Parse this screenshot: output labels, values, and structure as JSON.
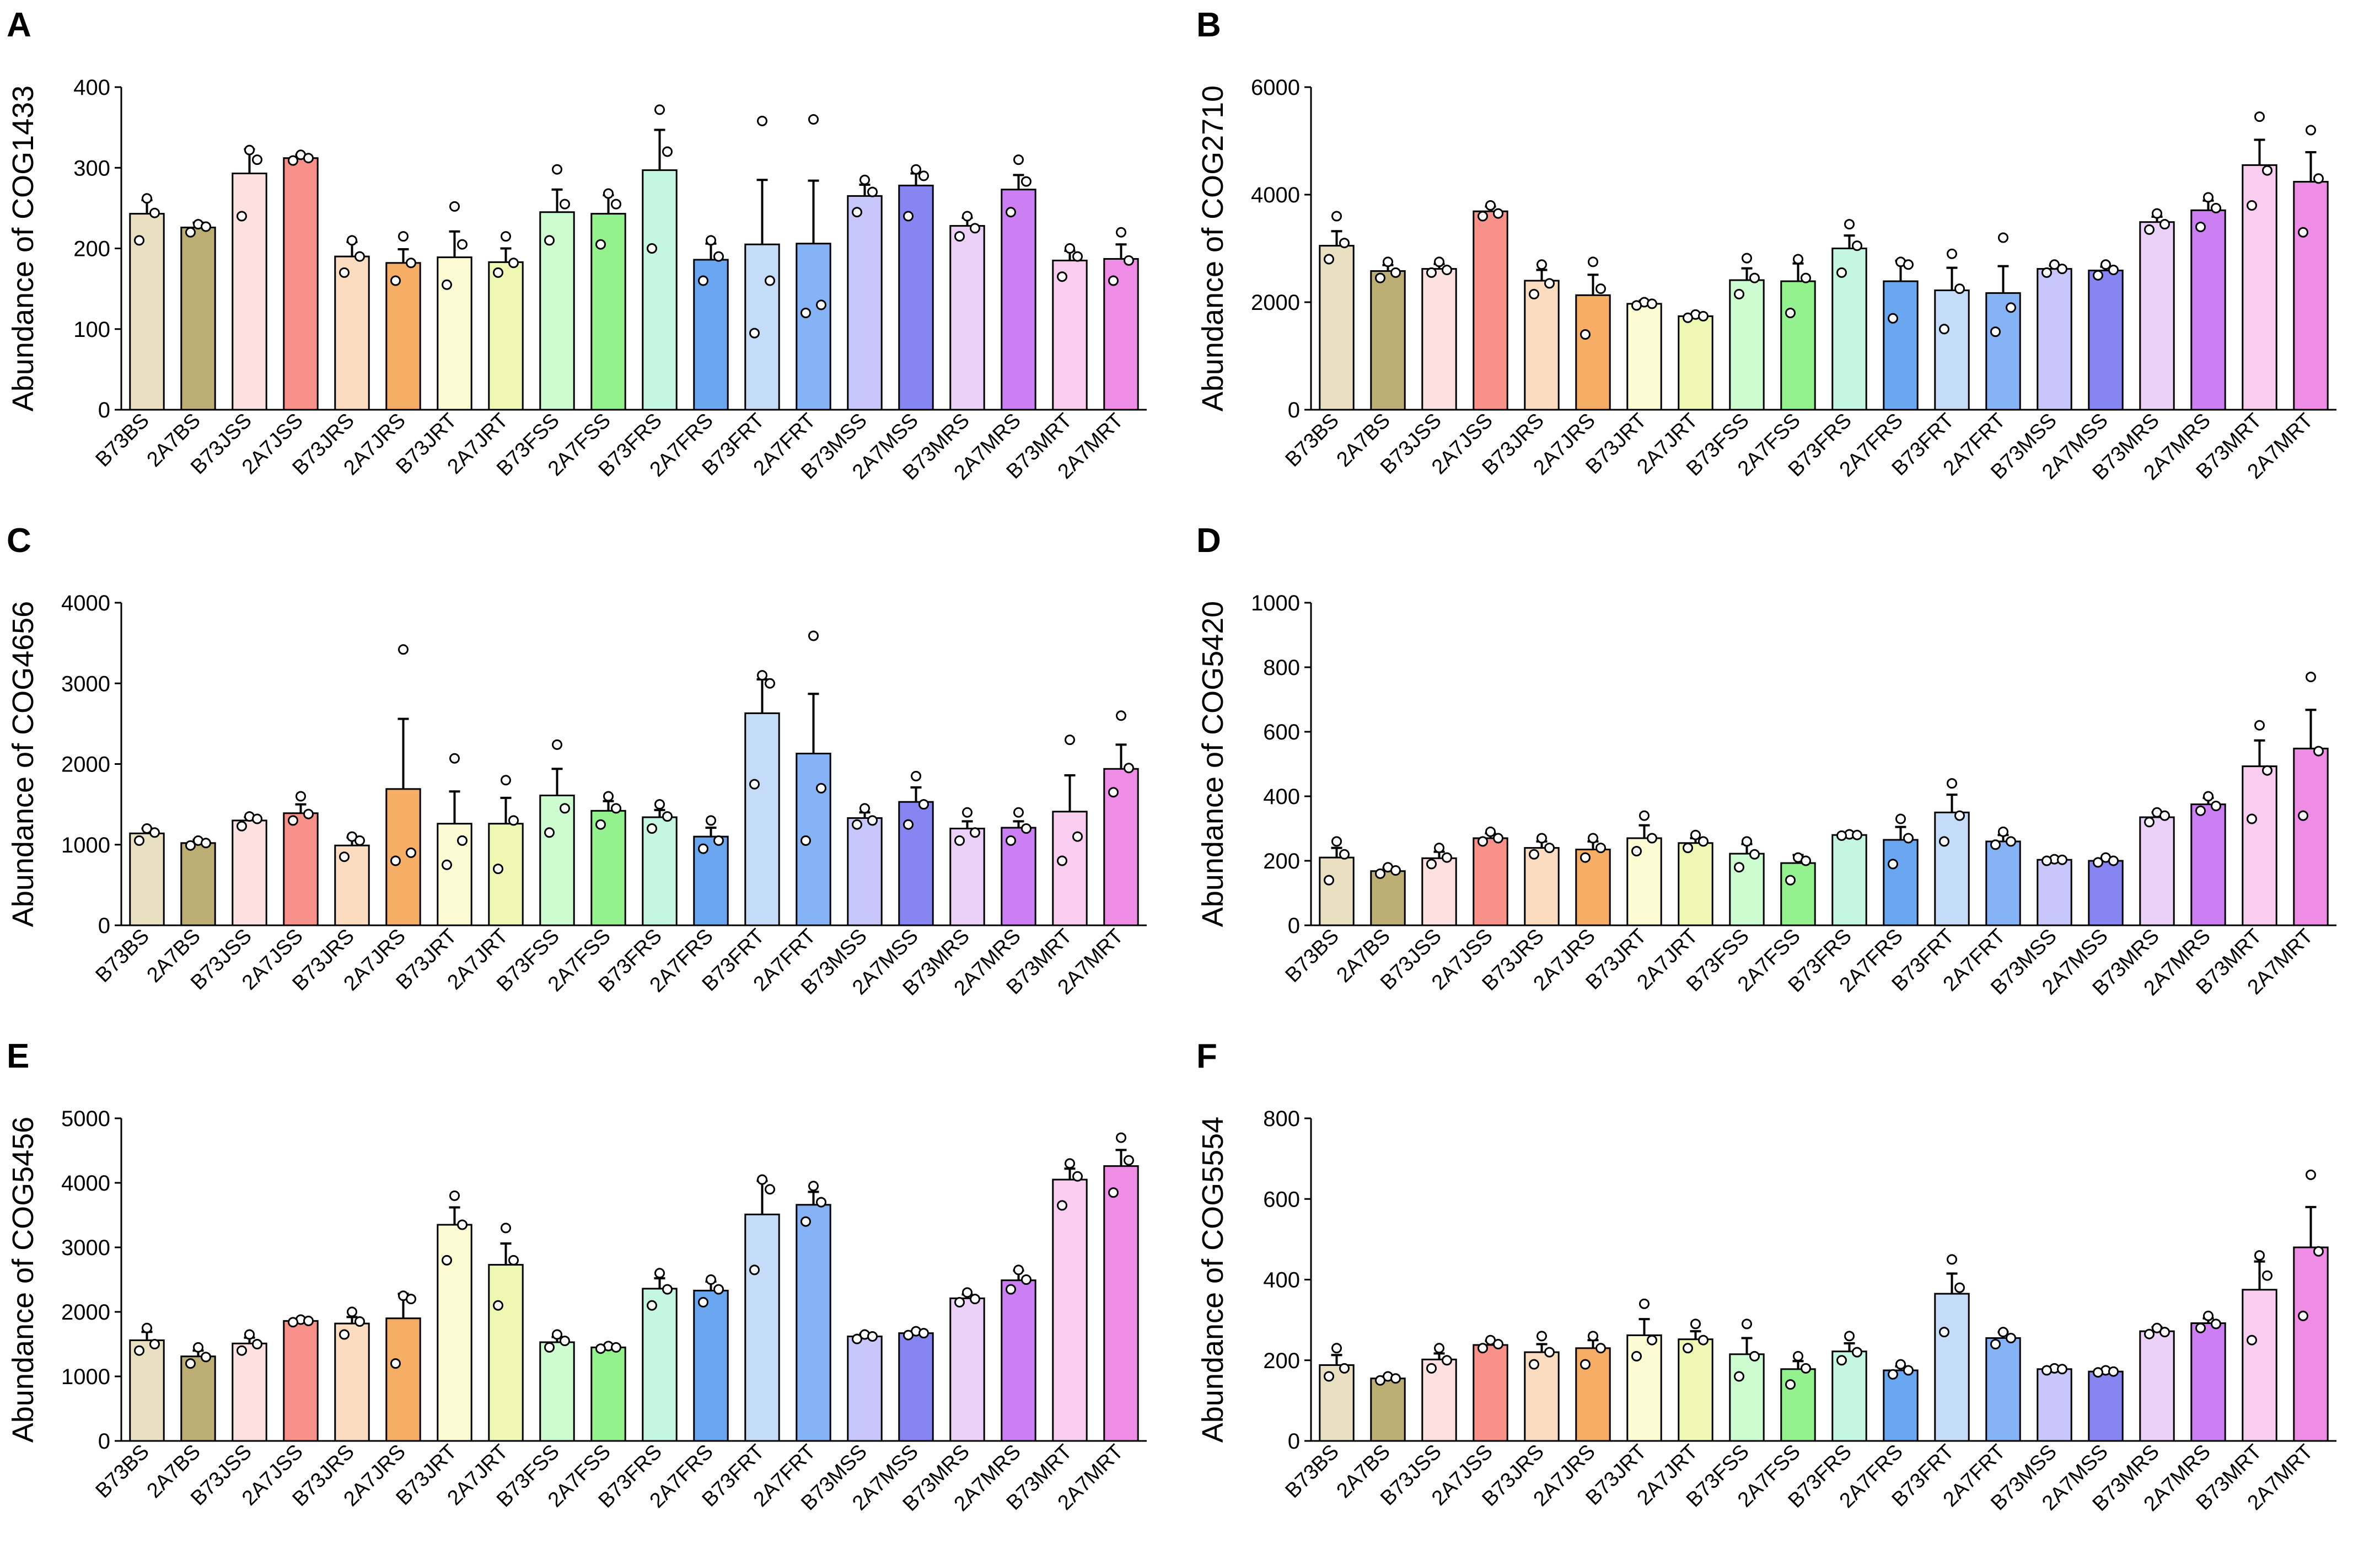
{
  "figure_title": "",
  "chart_data": [
    {
      "panel": "A",
      "type": "bar",
      "ylabel": "Abundance of COG1433",
      "xlabel": "",
      "ylim": [
        0,
        400
      ],
      "yticks": [
        0,
        100,
        200,
        300,
        400
      ],
      "categories": [
        "B73BS",
        "2A7BS",
        "B73JSS",
        "2A7JSS",
        "B73JRS",
        "2A7JRS",
        "B73JRT",
        "2A7JRT",
        "B73FSS",
        "2A7FSS",
        "B73FRS",
        "2A7FRS",
        "B73FRT",
        "2A7FRT",
        "B73MSS",
        "2A7MSS",
        "B73MRS",
        "2A7MRS",
        "B73MRT",
        "2A7MRT"
      ],
      "colors": [
        "#e9dfc1",
        "#bcae74",
        "#fde0e0",
        "#f7918a",
        "#fcdcc0",
        "#f6ae66",
        "#fdfbd4",
        "#eff8b3",
        "#cdfcd0",
        "#93f28e",
        "#c5f6e1",
        "#6aa7f0",
        "#c4dcf8",
        "#85b3f5",
        "#c8c7fb",
        "#8685f1",
        "#ebd1f7",
        "#cc7ef3",
        "#f8cdef",
        "#ee8ce6"
      ],
      "values": [
        243,
        226,
        293,
        312,
        190,
        182,
        189,
        183,
        245,
        243,
        297,
        186,
        205,
        206,
        265,
        278,
        228,
        273,
        185,
        187
      ],
      "errors": [
        17,
        6,
        30,
        4,
        18,
        17,
        32,
        17,
        28,
        23,
        50,
        20,
        80,
        78,
        14,
        15,
        10,
        18,
        12,
        18
      ],
      "points": [
        [
          262,
          244,
          210
        ],
        [
          230,
          227,
          220
        ],
        [
          322,
          310,
          240
        ],
        [
          316,
          312,
          309
        ],
        [
          210,
          190,
          170
        ],
        [
          215,
          182,
          160
        ],
        [
          252,
          205,
          155
        ],
        [
          215,
          182,
          170
        ],
        [
          298,
          255,
          210
        ],
        [
          268,
          255,
          205
        ],
        [
          372,
          320,
          200
        ],
        [
          210,
          190,
          160
        ],
        [
          358,
          160,
          95
        ],
        [
          360,
          130,
          120
        ],
        [
          285,
          270,
          245
        ],
        [
          298,
          290,
          240
        ],
        [
          240,
          225,
          215
        ],
        [
          310,
          283,
          245
        ],
        [
          200,
          190,
          165
        ],
        [
          220,
          185,
          160
        ]
      ]
    },
    {
      "panel": "B",
      "type": "bar",
      "ylabel": "Abundance of COG2710",
      "xlabel": "",
      "ylim": [
        0,
        6000
      ],
      "yticks": [
        0,
        2000,
        4000,
        6000
      ],
      "categories": [
        "B73BS",
        "2A7BS",
        "B73JSS",
        "2A7JSS",
        "B73JRS",
        "2A7JRS",
        "B73JRT",
        "2A7JRT",
        "B73FSS",
        "2A7FSS",
        "B73FRS",
        "2A7FRS",
        "B73FRT",
        "2A7FRT",
        "B73MSS",
        "2A7MSS",
        "B73MRS",
        "2A7MRS",
        "B73MRT",
        "2A7MRT"
      ],
      "colors": [
        "#e9dfc1",
        "#bcae74",
        "#fde0e0",
        "#f7918a",
        "#fcdcc0",
        "#f6ae66",
        "#fdfbd4",
        "#eff8b3",
        "#cdfcd0",
        "#93f28e",
        "#c5f6e1",
        "#6aa7f0",
        "#c4dcf8",
        "#85b3f5",
        "#c8c7fb",
        "#8685f1",
        "#ebd1f7",
        "#cc7ef3",
        "#f8cdef",
        "#ee8ce6"
      ],
      "values": [
        3050,
        2580,
        2620,
        3690,
        2400,
        2130,
        1970,
        1740,
        2410,
        2390,
        3000,
        2390,
        2220,
        2170,
        2620,
        2590,
        3490,
        3710,
        4550,
        4240
      ],
      "errors": [
        270,
        110,
        90,
        90,
        200,
        380,
        60,
        30,
        220,
        330,
        240,
        380,
        420,
        500,
        60,
        70,
        100,
        180,
        470,
        550
      ],
      "points": [
        [
          3600,
          3100,
          2800
        ],
        [
          2750,
          2550,
          2450
        ],
        [
          2750,
          2600,
          2550
        ],
        [
          3800,
          3650,
          3600
        ],
        [
          2700,
          2350,
          2150
        ],
        [
          2750,
          2250,
          1400
        ],
        [
          2000,
          1970,
          1940
        ],
        [
          1770,
          1740,
          1710
        ],
        [
          2820,
          2450,
          2150
        ],
        [
          2800,
          2450,
          1800
        ],
        [
          3450,
          3050,
          2550
        ],
        [
          2750,
          2700,
          1700
        ],
        [
          2900,
          2250,
          1500
        ],
        [
          3200,
          1900,
          1450
        ],
        [
          2700,
          2620,
          2550
        ],
        [
          2700,
          2600,
          2500
        ],
        [
          3650,
          3450,
          3350
        ],
        [
          3950,
          3750,
          3400
        ],
        [
          5450,
          4450,
          3800
        ],
        [
          5200,
          4300,
          3300
        ]
      ]
    },
    {
      "panel": "C",
      "type": "bar",
      "ylabel": "Abundance of COG4656",
      "xlabel": "",
      "ylim": [
        0,
        4000
      ],
      "yticks": [
        0,
        1000,
        2000,
        3000,
        4000
      ],
      "categories": [
        "B73BS",
        "2A7BS",
        "B73JSS",
        "2A7JSS",
        "B73JRS",
        "2A7JRS",
        "B73JRT",
        "2A7JRT",
        "B73FSS",
        "2A7FSS",
        "B73FRS",
        "2A7FRS",
        "B73FRT",
        "2A7FRT",
        "B73MSS",
        "2A7MSS",
        "B73MRS",
        "2A7MRS",
        "B73MRT",
        "2A7MRT"
      ],
      "colors": [
        "#e9dfc1",
        "#bcae74",
        "#fde0e0",
        "#f7918a",
        "#fcdcc0",
        "#f6ae66",
        "#fdfbd4",
        "#eff8b3",
        "#cdfcd0",
        "#93f28e",
        "#c5f6e1",
        "#6aa7f0",
        "#c4dcf8",
        "#85b3f5",
        "#c8c7fb",
        "#8685f1",
        "#ebd1f7",
        "#cc7ef3",
        "#f8cdef",
        "#ee8ce6"
      ],
      "values": [
        1140,
        1020,
        1300,
        1390,
        990,
        1690,
        1260,
        1260,
        1610,
        1420,
        1340,
        1100,
        2630,
        2130,
        1330,
        1530,
        1200,
        1210,
        1410,
        1940
      ],
      "errors": [
        60,
        40,
        40,
        110,
        100,
        870,
        400,
        320,
        330,
        120,
        90,
        110,
        420,
        740,
        70,
        180,
        90,
        80,
        450,
        300
      ],
      "points": [
        [
          1200,
          1150,
          1050
        ],
        [
          1050,
          1020,
          990
        ],
        [
          1350,
          1320,
          1230
        ],
        [
          1600,
          1380,
          1300
        ],
        [
          1100,
          1050,
          850
        ],
        [
          3420,
          900,
          800
        ],
        [
          2070,
          1050,
          750
        ],
        [
          1800,
          1300,
          700
        ],
        [
          2240,
          1450,
          1150
        ],
        [
          1600,
          1450,
          1250
        ],
        [
          1500,
          1350,
          1200
        ],
        [
          1300,
          1050,
          950
        ],
        [
          3100,
          3000,
          1750
        ],
        [
          3590,
          1700,
          1050
        ],
        [
          1450,
          1300,
          1250
        ],
        [
          1850,
          1500,
          1250
        ],
        [
          1400,
          1150,
          1050
        ],
        [
          1400,
          1200,
          1050
        ],
        [
          2300,
          1100,
          800
        ],
        [
          2600,
          1950,
          1650
        ]
      ]
    },
    {
      "panel": "D",
      "type": "bar",
      "ylabel": "Abundance of COG5420",
      "xlabel": "",
      "ylim": [
        0,
        1000
      ],
      "yticks": [
        0,
        200,
        400,
        600,
        800,
        1000
      ],
      "categories": [
        "B73BS",
        "2A7BS",
        "B73JSS",
        "2A7JSS",
        "B73JRS",
        "2A7JRS",
        "B73JRT",
        "2A7JRT",
        "B73FSS",
        "2A7FSS",
        "B73FRS",
        "2A7FRS",
        "B73FRT",
        "2A7FRT",
        "B73MSS",
        "2A7MSS",
        "B73MRS",
        "2A7MRS",
        "B73MRT",
        "2A7MRT"
      ],
      "colors": [
        "#e9dfc1",
        "#bcae74",
        "#fde0e0",
        "#f7918a",
        "#fcdcc0",
        "#f6ae66",
        "#fdfbd4",
        "#eff8b3",
        "#cdfcd0",
        "#93f28e",
        "#c5f6e1",
        "#6aa7f0",
        "#c4dcf8",
        "#85b3f5",
        "#c8c7fb",
        "#8685f1",
        "#ebd1f7",
        "#cc7ef3",
        "#f8cdef",
        "#ee8ce6"
      ],
      "values": [
        210,
        168,
        208,
        270,
        240,
        235,
        270,
        255,
        222,
        193,
        280,
        265,
        350,
        260,
        203,
        200,
        335,
        375,
        493,
        548
      ],
      "errors": [
        30,
        10,
        20,
        15,
        20,
        25,
        40,
        15,
        30,
        25,
        5,
        40,
        55,
        20,
        5,
        8,
        15,
        20,
        80,
        120
      ],
      "points": [
        [
          260,
          220,
          140
        ],
        [
          180,
          170,
          160
        ],
        [
          240,
          210,
          190
        ],
        [
          290,
          270,
          260
        ],
        [
          270,
          240,
          220
        ],
        [
          270,
          240,
          210
        ],
        [
          340,
          270,
          230
        ],
        [
          280,
          260,
          240
        ],
        [
          260,
          220,
          180
        ],
        [
          210,
          200,
          140
        ],
        [
          282,
          280,
          278
        ],
        [
          330,
          270,
          190
        ],
        [
          440,
          340,
          260
        ],
        [
          290,
          260,
          250
        ],
        [
          205,
          203,
          200
        ],
        [
          210,
          200,
          195
        ],
        [
          350,
          340,
          320
        ],
        [
          400,
          370,
          355
        ],
        [
          620,
          480,
          330
        ],
        [
          770,
          540,
          340
        ]
      ]
    },
    {
      "panel": "E",
      "type": "bar",
      "ylabel": "Abundance of COG5456",
      "xlabel": "",
      "ylim": [
        0,
        5000
      ],
      "yticks": [
        0,
        1000,
        2000,
        3000,
        4000,
        5000
      ],
      "categories": [
        "B73BS",
        "2A7BS",
        "B73JSS",
        "2A7JSS",
        "B73JRS",
        "2A7JRS",
        "B73JRT",
        "2A7JRT",
        "B73FSS",
        "2A7FSS",
        "B73FRS",
        "2A7FRS",
        "B73FRT",
        "2A7FRT",
        "B73MSS",
        "2A7MSS",
        "B73MRS",
        "2A7MRS",
        "B73MRT",
        "2A7MRT"
      ],
      "colors": [
        "#e9dfc1",
        "#bcae74",
        "#fde0e0",
        "#f7918a",
        "#fcdcc0",
        "#f6ae66",
        "#fdfbd4",
        "#eff8b3",
        "#cdfcd0",
        "#93f28e",
        "#c5f6e1",
        "#6aa7f0",
        "#c4dcf8",
        "#85b3f5",
        "#c8c7fb",
        "#8685f1",
        "#ebd1f7",
        "#cc7ef3",
        "#f8cdef",
        "#ee8ce6"
      ],
      "values": [
        1560,
        1310,
        1510,
        1860,
        1820,
        1900,
        3350,
        2730,
        1530,
        1450,
        2360,
        2330,
        3510,
        3660,
        1620,
        1670,
        2210,
        2490,
        4050,
        4260
      ],
      "errors": [
        130,
        90,
        90,
        20,
        100,
        380,
        270,
        330,
        80,
        30,
        160,
        140,
        520,
        200,
        40,
        30,
        60,
        150,
        170,
        250
      ],
      "points": [
        [
          1750,
          1500,
          1400
        ],
        [
          1450,
          1300,
          1200
        ],
        [
          1650,
          1500,
          1400
        ],
        [
          1880,
          1860,
          1840
        ],
        [
          2000,
          1850,
          1650
        ],
        [
          2250,
          2200,
          1200
        ],
        [
          3800,
          3350,
          2800
        ],
        [
          3300,
          2800,
          2100
        ],
        [
          1650,
          1550,
          1450
        ],
        [
          1470,
          1450,
          1430
        ],
        [
          2600,
          2350,
          2100
        ],
        [
          2500,
          2350,
          2150
        ],
        [
          4050,
          3900,
          2650
        ],
        [
          3950,
          3700,
          3400
        ],
        [
          1650,
          1620,
          1580
        ],
        [
          1700,
          1670,
          1640
        ],
        [
          2300,
          2200,
          2150
        ],
        [
          2650,
          2500,
          2350
        ],
        [
          4300,
          4100,
          3650
        ],
        [
          4700,
          4350,
          3850
        ]
      ]
    },
    {
      "panel": "F",
      "type": "bar",
      "ylabel": "Abundance of COG5554",
      "xlabel": "",
      "ylim": [
        0,
        800
      ],
      "yticks": [
        0,
        200,
        400,
        600,
        800
      ],
      "categories": [
        "B73BS",
        "2A7BS",
        "B73JSS",
        "2A7JSS",
        "B73JRS",
        "2A7JRS",
        "B73JRT",
        "2A7JRT",
        "B73FSS",
        "2A7FSS",
        "B73FRS",
        "2A7FRS",
        "B73FRT",
        "2A7FRT",
        "B73MSS",
        "2A7MSS",
        "B73MRS",
        "2A7MRS",
        "B73MRT",
        "2A7MRT"
      ],
      "colors": [
        "#e9dfc1",
        "#bcae74",
        "#fde0e0",
        "#f7918a",
        "#fcdcc0",
        "#f6ae66",
        "#fdfbd4",
        "#eff8b3",
        "#cdfcd0",
        "#93f28e",
        "#c5f6e1",
        "#6aa7f0",
        "#c4dcf8",
        "#85b3f5",
        "#c8c7fb",
        "#8685f1",
        "#ebd1f7",
        "#cc7ef3",
        "#f8cdef",
        "#ee8ce6"
      ],
      "values": [
        188,
        155,
        202,
        238,
        220,
        230,
        262,
        252,
        215,
        178,
        222,
        175,
        365,
        255,
        178,
        172,
        272,
        292,
        375,
        480
      ],
      "errors": [
        25,
        5,
        15,
        10,
        20,
        20,
        40,
        20,
        40,
        20,
        20,
        10,
        50,
        15,
        5,
        5,
        10,
        12,
        70,
        100
      ],
      "points": [
        [
          230,
          180,
          160
        ],
        [
          160,
          155,
          150
        ],
        [
          230,
          200,
          180
        ],
        [
          250,
          240,
          230
        ],
        [
          260,
          220,
          190
        ],
        [
          260,
          230,
          190
        ],
        [
          340,
          250,
          210
        ],
        [
          290,
          250,
          230
        ],
        [
          290,
          210,
          160
        ],
        [
          210,
          180,
          140
        ],
        [
          260,
          220,
          200
        ],
        [
          190,
          175,
          165
        ],
        [
          450,
          380,
          270
        ],
        [
          270,
          255,
          240
        ],
        [
          180,
          178,
          175
        ],
        [
          175,
          172,
          170
        ],
        [
          280,
          270,
          265
        ],
        [
          310,
          290,
          280
        ],
        [
          460,
          410,
          250
        ],
        [
          660,
          470,
          310
        ]
      ]
    }
  ]
}
